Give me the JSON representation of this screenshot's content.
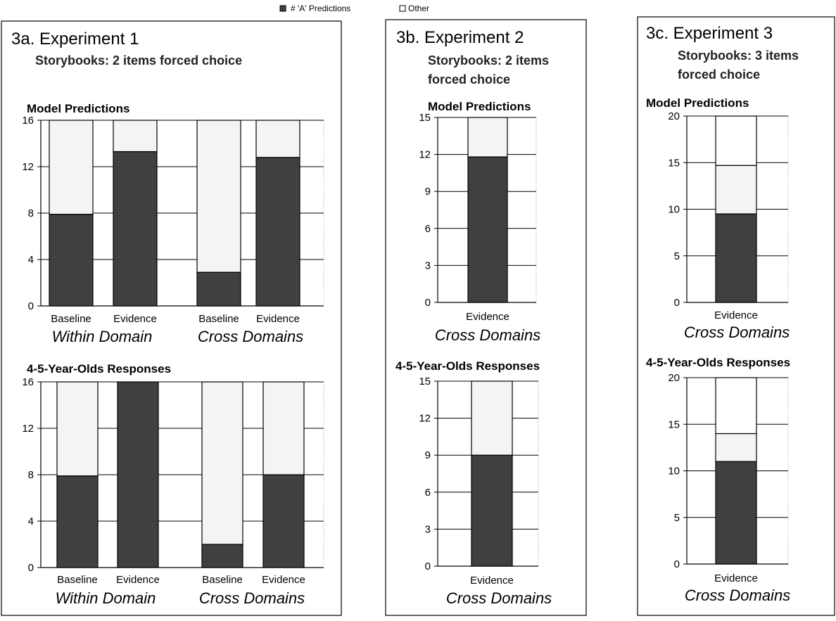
{
  "legend": {
    "items": [
      {
        "label": "# 'A' Predictions",
        "color": "#404040"
      },
      {
        "label": "Other",
        "color": "#f4f4f4"
      }
    ]
  },
  "colors": {
    "a_predictions": "#404040",
    "other": "#f4f4f4",
    "border": "#000000"
  },
  "panels": [
    {
      "heading": "3a. Experiment 1",
      "subtitle_lines": [
        "Storybooks: 2 items forced choice"
      ]
    },
    {
      "heading": "3b. Experiment 2",
      "subtitle_lines": [
        "Storybooks: 2 items",
        "forced choice"
      ]
    },
    {
      "heading": "3c. Experiment 3",
      "subtitle_lines": [
        "Storybooks: 3 items",
        "forced choice"
      ]
    }
  ],
  "chart_data": [
    {
      "type": "bar",
      "stacked": true,
      "panel": "3a. Experiment 1",
      "title": "Model Predictions",
      "categories": [
        "Baseline",
        "Evidence",
        "Baseline",
        "Evidence"
      ],
      "category_groups": [
        {
          "label": "Within Domain",
          "categories": [
            "Baseline",
            "Evidence"
          ]
        },
        {
          "label": "Cross Domains",
          "categories": [
            "Baseline",
            "Evidence"
          ]
        }
      ],
      "series": [
        {
          "name": "# 'A' Predictions",
          "values": [
            7.9,
            13.3,
            2.9,
            12.8
          ]
        },
        {
          "name": "Other",
          "values": [
            8.1,
            2.7,
            13.1,
            3.2
          ]
        }
      ],
      "ylim": [
        0,
        16
      ],
      "yticks": [
        0,
        4,
        8,
        12,
        16
      ],
      "grid": true,
      "legend": "top"
    },
    {
      "type": "bar",
      "stacked": true,
      "panel": "3a. Experiment 1",
      "title": "4-5-Year-Olds Responses",
      "categories": [
        "Baseline",
        "Evidence",
        "Baseline",
        "Evidence"
      ],
      "category_groups": [
        {
          "label": "Within Domain",
          "categories": [
            "Baseline",
            "Evidence"
          ]
        },
        {
          "label": "Cross Domains",
          "categories": [
            "Baseline",
            "Evidence"
          ]
        }
      ],
      "series": [
        {
          "name": "# 'A' Predictions",
          "values": [
            7.9,
            16,
            2,
            8
          ]
        },
        {
          "name": "Other",
          "values": [
            8.1,
            0,
            14,
            8
          ]
        }
      ],
      "ylim": [
        0,
        16
      ],
      "yticks": [
        0,
        4,
        8,
        12,
        16
      ],
      "grid": true,
      "legend": "top"
    },
    {
      "type": "bar",
      "stacked": true,
      "panel": "3b. Experiment 2",
      "title": "Model Predictions",
      "categories": [
        "Evidence"
      ],
      "category_groups": [
        {
          "label": "Cross Domains",
          "categories": [
            "Evidence"
          ]
        }
      ],
      "series": [
        {
          "name": "# 'A' Predictions",
          "values": [
            11.8
          ]
        },
        {
          "name": "Other",
          "values": [
            3.2
          ]
        }
      ],
      "ylim": [
        0,
        15
      ],
      "yticks": [
        0,
        3,
        6,
        9,
        12,
        15
      ],
      "grid": true,
      "legend": "top"
    },
    {
      "type": "bar",
      "stacked": true,
      "panel": "3b. Experiment 2",
      "title": "4-5-Year-Olds Responses",
      "categories": [
        "Evidence"
      ],
      "category_groups": [
        {
          "label": "Cross Domains",
          "categories": [
            "Evidence"
          ]
        }
      ],
      "series": [
        {
          "name": "# 'A' Predictions",
          "values": [
            9
          ]
        },
        {
          "name": "Other",
          "values": [
            6
          ]
        }
      ],
      "ylim": [
        0,
        15
      ],
      "yticks": [
        0,
        3,
        6,
        9,
        12,
        15
      ],
      "grid": true,
      "legend": "top"
    },
    {
      "type": "bar",
      "stacked": true,
      "panel": "3c. Experiment 3",
      "title": "Model Predictions",
      "categories": [
        "Evidence"
      ],
      "category_groups": [
        {
          "label": "Cross Domains",
          "categories": [
            "Evidence"
          ]
        }
      ],
      "series": [
        {
          "name": "# 'A' Predictions",
          "values": [
            9.5
          ]
        },
        {
          "name": "Other",
          "values": [
            5.2
          ]
        },
        {
          "name": "",
          "values": [
            5.3
          ]
        }
      ],
      "series_fill": [
        "#404040",
        "#f4f4f4",
        "#ffffff"
      ],
      "ylim": [
        0,
        20
      ],
      "yticks": [
        0,
        5,
        10,
        15,
        20
      ],
      "grid": true,
      "legend": "top"
    },
    {
      "type": "bar",
      "stacked": true,
      "panel": "3c. Experiment 3",
      "title": "4-5-Year-Olds Responses",
      "categories": [
        "Evidence"
      ],
      "category_groups": [
        {
          "label": "Cross Domains",
          "categories": [
            "Evidence"
          ]
        }
      ],
      "series": [
        {
          "name": "# 'A' Predictions",
          "values": [
            11
          ]
        },
        {
          "name": "Other",
          "values": [
            3
          ]
        },
        {
          "name": "",
          "values": [
            6
          ]
        }
      ],
      "series_fill": [
        "#404040",
        "#f4f4f4",
        "#ffffff"
      ],
      "ylim": [
        0,
        20
      ],
      "yticks": [
        0,
        5,
        10,
        15,
        20
      ],
      "grid": true,
      "legend": "top"
    }
  ]
}
